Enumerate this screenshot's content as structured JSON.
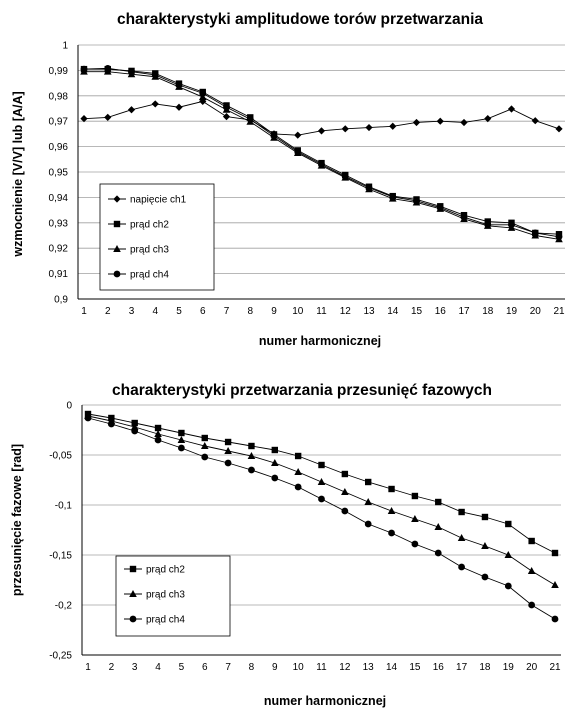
{
  "chart_data": [
    {
      "type": "line",
      "title": "charakterystyki amplitudowe torów przetwarzania",
      "xlabel": "numer harmonicznej",
      "ylabel": "wzmocnienie [V/V] lub [A/A]",
      "ylim": [
        0.9,
        1.0
      ],
      "grid": true,
      "legend_position": "bottom-left",
      "x": [
        1,
        2,
        3,
        4,
        5,
        6,
        7,
        8,
        9,
        10,
        11,
        12,
        13,
        14,
        15,
        16,
        17,
        18,
        19,
        20,
        21
      ],
      "y_ticks": [
        "0,9",
        "0,91",
        "0,92",
        "0,93",
        "0,94",
        "0,95",
        "0,96",
        "0,97",
        "0,98",
        "0,99",
        "1"
      ],
      "series": [
        {
          "name": "napięcie ch1",
          "marker": "diamond",
          "values": [
            0.971,
            0.9715,
            0.9745,
            0.9768,
            0.9755,
            0.9778,
            0.9718,
            0.9705,
            0.965,
            0.9645,
            0.9662,
            0.967,
            0.9675,
            0.968,
            0.9695,
            0.97,
            0.9695,
            0.971,
            0.9748,
            0.9702,
            0.967
          ]
        },
        {
          "name": "prąd ch2",
          "marker": "square",
          "values": [
            0.9905,
            0.9905,
            0.9898,
            0.9888,
            0.9848,
            0.9815,
            0.9762,
            0.9715,
            0.9648,
            0.9585,
            0.9535,
            0.9488,
            0.9442,
            0.9405,
            0.9392,
            0.9365,
            0.933,
            0.9305,
            0.93,
            0.926,
            0.9255
          ]
        },
        {
          "name": "prąd ch3",
          "marker": "triangle",
          "values": [
            0.9895,
            0.9895,
            0.9885,
            0.9875,
            0.9835,
            0.9795,
            0.9745,
            0.9698,
            0.9635,
            0.9575,
            0.9525,
            0.9478,
            0.9432,
            0.9395,
            0.938,
            0.9355,
            0.9315,
            0.9288,
            0.928,
            0.925,
            0.9235
          ]
        },
        {
          "name": "prąd ch4",
          "marker": "circle",
          "values": [
            0.9905,
            0.9908,
            0.9895,
            0.9882,
            0.9842,
            0.981,
            0.9755,
            0.9708,
            0.9642,
            0.958,
            0.953,
            0.9482,
            0.9438,
            0.9402,
            0.9386,
            0.936,
            0.9322,
            0.9292,
            0.9292,
            0.926,
            0.9245
          ]
        }
      ]
    },
    {
      "type": "line",
      "title": "charakterystyki przetwarzania przesunięć fazowych",
      "xlabel": "numer harmonicznej",
      "ylabel": "przesunięcie fazowe [rad]",
      "ylim": [
        -0.25,
        0
      ],
      "grid": true,
      "legend_position": "bottom-left",
      "x": [
        1,
        2,
        3,
        4,
        5,
        6,
        7,
        8,
        9,
        10,
        11,
        12,
        13,
        14,
        15,
        16,
        17,
        18,
        19,
        20,
        21
      ],
      "y_ticks": [
        "-0,25",
        "-0,2",
        "-0,15",
        "-0,1",
        "-0,05",
        "0"
      ],
      "series": [
        {
          "name": "prąd ch2",
          "marker": "square",
          "values": [
            -0.009,
            -0.013,
            -0.018,
            -0.023,
            -0.028,
            -0.033,
            -0.037,
            -0.041,
            -0.045,
            -0.051,
            -0.06,
            -0.069,
            -0.077,
            -0.084,
            -0.091,
            -0.097,
            -0.107,
            -0.112,
            -0.119,
            -0.136,
            -0.148
          ]
        },
        {
          "name": "prąd ch3",
          "marker": "triangle",
          "values": [
            -0.011,
            -0.016,
            -0.022,
            -0.029,
            -0.035,
            -0.041,
            -0.046,
            -0.051,
            -0.058,
            -0.067,
            -0.077,
            -0.087,
            -0.097,
            -0.106,
            -0.114,
            -0.122,
            -0.133,
            -0.141,
            -0.15,
            -0.166,
            -0.18
          ]
        },
        {
          "name": "prąd ch4",
          "marker": "circle",
          "values": [
            -0.013,
            -0.019,
            -0.026,
            -0.035,
            -0.043,
            -0.052,
            -0.058,
            -0.065,
            -0.073,
            -0.082,
            -0.094,
            -0.106,
            -0.119,
            -0.128,
            -0.139,
            -0.148,
            -0.162,
            -0.172,
            -0.181,
            -0.2,
            -0.214
          ]
        }
      ]
    }
  ]
}
